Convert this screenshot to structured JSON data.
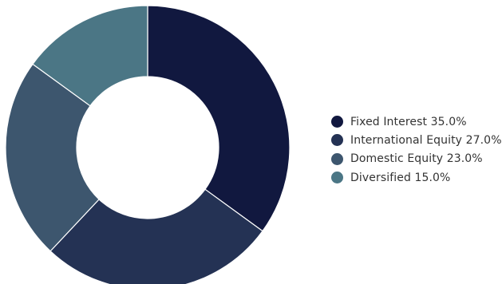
{
  "chart_data": {
    "type": "pie",
    "variant": "donut",
    "title": "",
    "categories": [
      "Fixed Interest",
      "International Equity",
      "Domestic Equity",
      "Diversified"
    ],
    "values": [
      35.0,
      27.0,
      23.0,
      15.0
    ],
    "value_labels": [
      "35.0%",
      "27.0%",
      "23.0%",
      "15.0%"
    ],
    "colors": [
      "#11183f",
      "#243254",
      "#3d566e",
      "#4b7685"
    ],
    "slice_border_color": "#ffffff",
    "start_angle": "12 o'clock",
    "direction": "clockwise",
    "legend": {
      "placement": "right",
      "marker": "circle",
      "entries": [
        "Fixed Interest 35.0%",
        "International Equity 27.0%",
        "Domestic Equity 23.0%",
        "Diversified 15.0%"
      ]
    }
  }
}
